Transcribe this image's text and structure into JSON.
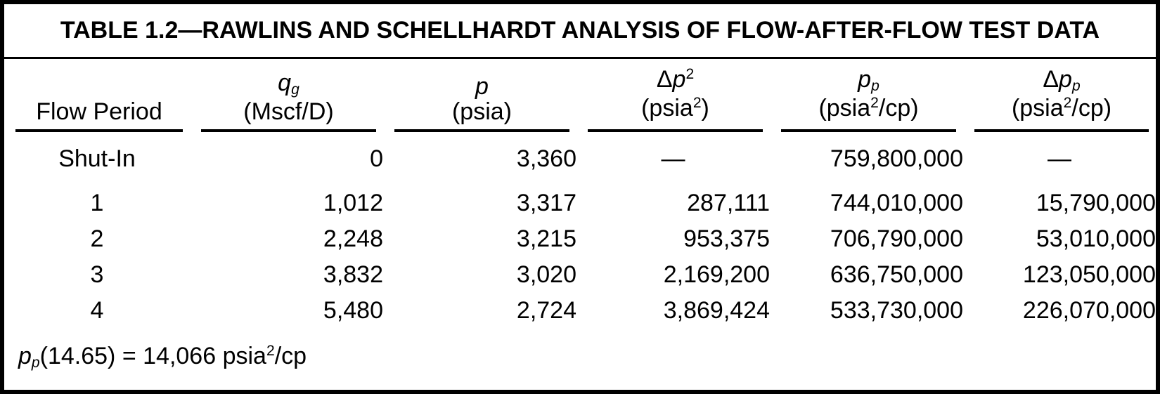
{
  "title": "TABLE 1.2—RAWLINS AND SCHELLHARDT ANALYSIS OF FLOW-AFTER-FLOW TEST DATA",
  "colors": {
    "background": "#ffffff",
    "border": "#000000",
    "text": "#000000"
  },
  "table": {
    "headers": [
      {
        "name": "flow-period",
        "line1": [
          [
            "",
            "Flow Period"
          ]
        ],
        "line2": null
      },
      {
        "name": "qg",
        "line1": [
          [
            "i",
            "q"
          ],
          [
            "isub",
            "g"
          ]
        ],
        "line2": [
          [
            "",
            "(Mscf/D)"
          ]
        ]
      },
      {
        "name": "p",
        "line1": [
          [
            "i",
            "p"
          ]
        ],
        "line2": [
          [
            "",
            "(psia)"
          ]
        ]
      },
      {
        "name": "delta-p2",
        "line1": [
          [
            "",
            "Δ"
          ],
          [
            "i",
            "p"
          ],
          [
            "sup",
            "2"
          ]
        ],
        "line2": [
          [
            "",
            "(psia"
          ],
          [
            "sup",
            "2"
          ],
          [
            "",
            ")"
          ]
        ]
      },
      {
        "name": "pp",
        "line1": [
          [
            "i",
            "p"
          ],
          [
            "isub",
            "p"
          ]
        ],
        "line2": [
          [
            "",
            "(psia"
          ],
          [
            "sup",
            "2"
          ],
          [
            "",
            "/cp)"
          ]
        ]
      },
      {
        "name": "delta-pp",
        "line1": [
          [
            "",
            "Δ"
          ],
          [
            "i",
            "p"
          ],
          [
            "isub",
            "p"
          ]
        ],
        "line2": [
          [
            "",
            "(psia"
          ],
          [
            "sup",
            "2"
          ],
          [
            "",
            "/cp)"
          ]
        ]
      }
    ],
    "rows": [
      [
        "Shut-In",
        "0",
        "3,360",
        "—",
        "759,800,000",
        "—"
      ],
      [
        "1",
        "1,012",
        "3,317",
        "287,111",
        "744,010,000",
        "15,790,000"
      ],
      [
        "2",
        "2,248",
        "3,215",
        "953,375",
        "706,790,000",
        "53,010,000"
      ],
      [
        "3",
        "3,832",
        "3,020",
        "2,169,200",
        "636,750,000",
        "123,050,000"
      ],
      [
        "4",
        "5,480",
        "2,724",
        "3,869,424",
        "533,730,000",
        "226,070,000"
      ]
    ],
    "footnote": [
      [
        "i",
        "p"
      ],
      [
        "isub",
        "p"
      ],
      [
        "",
        "(14.65) = 14,066 psia"
      ],
      [
        "sup",
        "2"
      ],
      [
        "",
        "/cp"
      ]
    ]
  }
}
